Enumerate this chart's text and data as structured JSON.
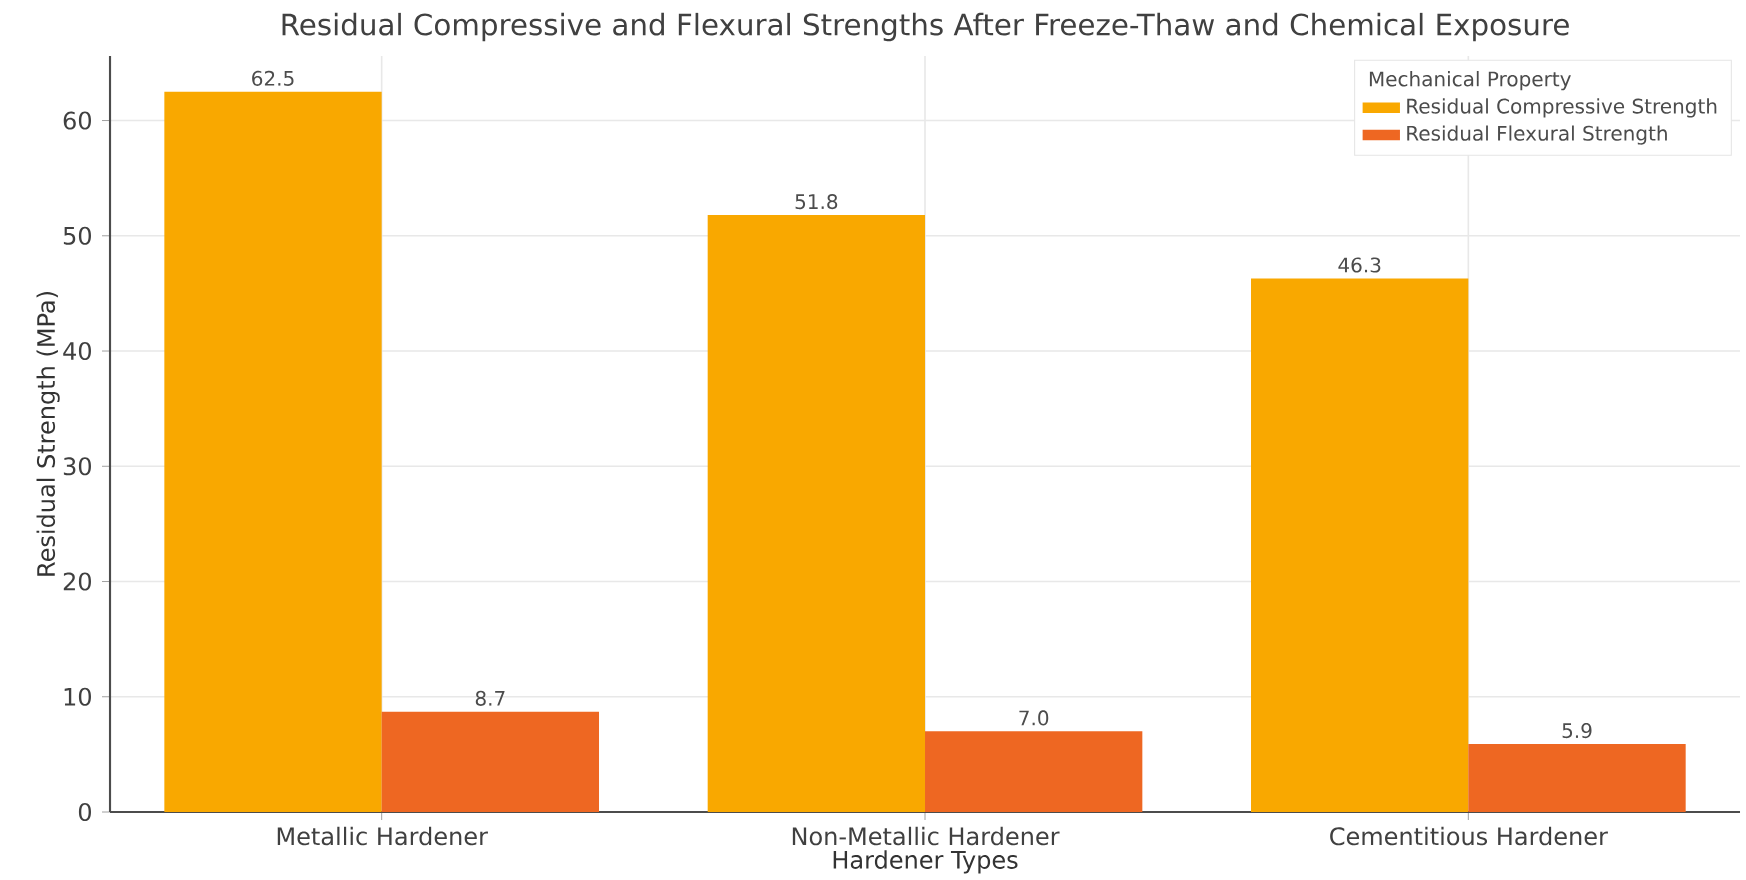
{
  "chart_data": {
    "type": "bar",
    "title": "Residual Compressive and Flexural Strengths After Freeze-Thaw and Chemical Exposure",
    "xlabel": "Hardener Types",
    "ylabel": "Residual Strength (MPa)",
    "legend_title": "Mechanical Property",
    "categories": [
      "Metallic Hardener",
      "Non-Metallic Hardener",
      "Cementitious Hardener"
    ],
    "series": [
      {
        "name": "Residual Compressive Strength",
        "color": "#f9a800",
        "values": [
          62.5,
          51.8,
          46.3
        ],
        "value_labels": [
          "62.5",
          "51.8",
          "46.3"
        ]
      },
      {
        "name": "Residual Flexural Strength",
        "color": "#ee6722",
        "values": [
          8.7,
          7.0,
          5.9
        ],
        "value_labels": [
          "8.7",
          "7.0",
          "5.9"
        ]
      }
    ],
    "ylim": [
      0,
      65.6
    ],
    "yticks": [
      0,
      10,
      20,
      30,
      40,
      50,
      60
    ],
    "grid": true,
    "legend": "top right"
  }
}
